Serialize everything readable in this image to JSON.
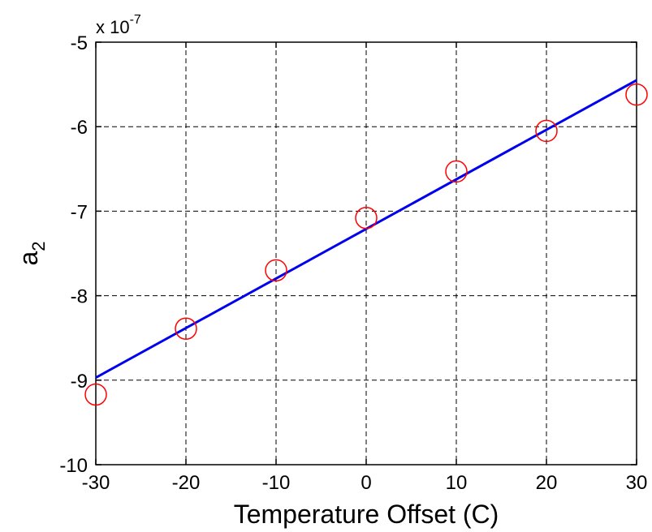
{
  "chart_data": {
    "type": "scatter",
    "title": "",
    "xlabel": "Temperature Offset (C)",
    "ylabel": "a",
    "ylabel_subscript": "2",
    "y_multiplier": {
      "prefix": "x 10",
      "exponent": "-7"
    },
    "xlim": [
      -30,
      30
    ],
    "ylim": [
      -10,
      -5
    ],
    "x_ticks": [
      -30,
      -20,
      -10,
      0,
      10,
      20,
      30
    ],
    "y_ticks": [
      -10,
      -9,
      -8,
      -7,
      -6,
      -5
    ],
    "x_tick_labels": [
      "-30",
      "-20",
      "-10",
      "0",
      "10",
      "20",
      "30"
    ],
    "y_tick_labels": [
      "-10",
      "-9",
      "-8",
      "-7",
      "-6",
      "-5"
    ],
    "grid": true,
    "series": [
      {
        "kind": "markers",
        "marker": "circle",
        "color": "#ff0000",
        "x": [
          -30,
          -20,
          -10,
          0,
          10,
          20,
          30
        ],
        "y": [
          -9.17,
          -8.39,
          -7.7,
          -7.08,
          -6.53,
          -6.05,
          -5.62
        ]
      },
      {
        "kind": "line",
        "color": "#0000ee",
        "x": [
          -30,
          30
        ],
        "y": [
          -8.97,
          -5.45
        ]
      }
    ]
  }
}
